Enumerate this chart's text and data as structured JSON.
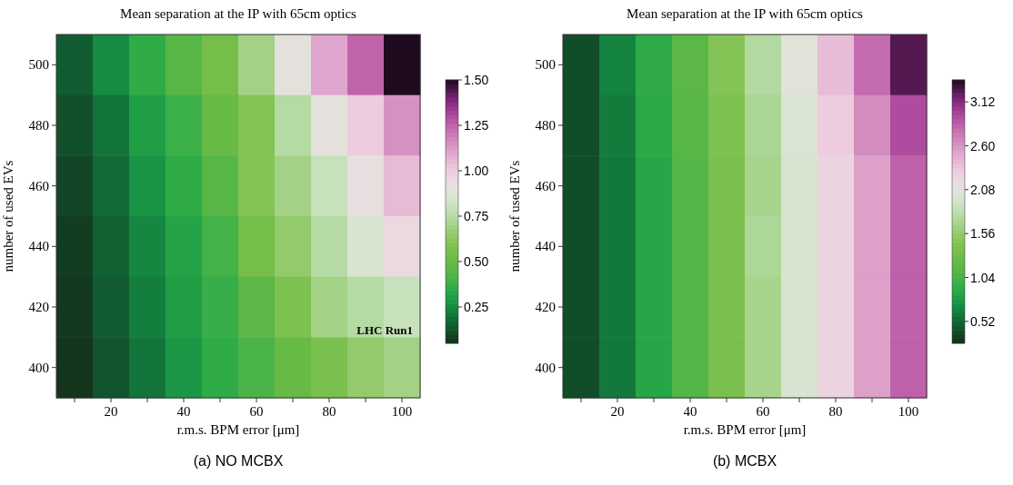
{
  "chart_data": [
    {
      "type": "heatmap",
      "title": "Mean separation at the IP with 65cm optics",
      "xlabel": "r.m.s. BPM error [μm]",
      "ylabel": "number of used EVs",
      "categories": [
        null,
        "20",
        null,
        "40",
        null,
        "60",
        null,
        "80",
        null,
        "100"
      ],
      "y_categories": [
        "500",
        "480",
        "460",
        "440",
        "420",
        "400"
      ],
      "cells": [
        [
          0.15,
          0.25,
          0.35,
          0.45,
          0.55,
          0.7,
          0.9,
          1.1,
          1.25,
          1.5
        ],
        [
          0.12,
          0.2,
          0.3,
          0.38,
          0.5,
          0.6,
          0.75,
          0.9,
          1.0,
          1.15
        ],
        [
          0.1,
          0.18,
          0.27,
          0.35,
          0.45,
          0.6,
          0.7,
          0.8,
          0.92,
          1.05
        ],
        [
          0.08,
          0.16,
          0.24,
          0.32,
          0.4,
          0.55,
          0.65,
          0.75,
          0.85,
          0.95
        ],
        [
          0.07,
          0.15,
          0.22,
          0.3,
          0.37,
          0.47,
          0.58,
          0.7,
          0.75,
          0.8
        ],
        [
          0.06,
          0.13,
          0.2,
          0.28,
          0.35,
          0.42,
          0.5,
          0.57,
          0.65,
          0.7
        ]
      ],
      "clim": [
        0.05,
        1.5
      ],
      "cticks": [
        0.25,
        {
          "value": 0.5,
          "label": "0.50"
        },
        0.75,
        {
          "value": 1.0,
          "label": "1.00"
        },
        1.25,
        {
          "value": 1.5,
          "label": "1.50"
        }
      ],
      "annotations": [
        "LHC Run1",
        "(a) NO MCBX"
      ]
    },
    {
      "type": "heatmap",
      "title": "Mean separation at the IP with 65cm optics",
      "xlabel": "r.m.s. BPM error [μm]",
      "ylabel": "number of used EVs",
      "categories": [
        null,
        "20",
        null,
        "40",
        null,
        "60",
        null,
        "80",
        null,
        "100"
      ],
      "y_categories": [
        "500",
        "480",
        "460",
        "440",
        "420",
        "400"
      ],
      "cells": [
        [
          0.4,
          0.65,
          0.9,
          1.15,
          1.45,
          1.75,
          2.05,
          2.4,
          2.8,
          3.25
        ],
        [
          0.4,
          0.62,
          0.88,
          1.12,
          1.4,
          1.7,
          2.0,
          2.3,
          2.65,
          2.95
        ],
        [
          0.4,
          0.6,
          0.86,
          1.1,
          1.38,
          1.68,
          1.98,
          2.25,
          2.55,
          2.85
        ],
        [
          0.4,
          0.6,
          0.86,
          1.1,
          1.38,
          1.72,
          1.98,
          2.25,
          2.55,
          2.85
        ],
        [
          0.4,
          0.6,
          0.86,
          1.1,
          1.38,
          1.68,
          1.98,
          2.25,
          2.55,
          2.85
        ],
        [
          0.4,
          0.6,
          0.86,
          1.1,
          1.38,
          1.68,
          1.98,
          2.25,
          2.55,
          2.85
        ]
      ],
      "clim": [
        0.26,
        3.38
      ],
      "cticks": [
        0.52,
        1.04,
        1.56,
        2.08,
        {
          "value": 2.6,
          "label": "2.60"
        },
        3.12
      ],
      "annotations": [
        "(b) MCBX"
      ]
    }
  ]
}
